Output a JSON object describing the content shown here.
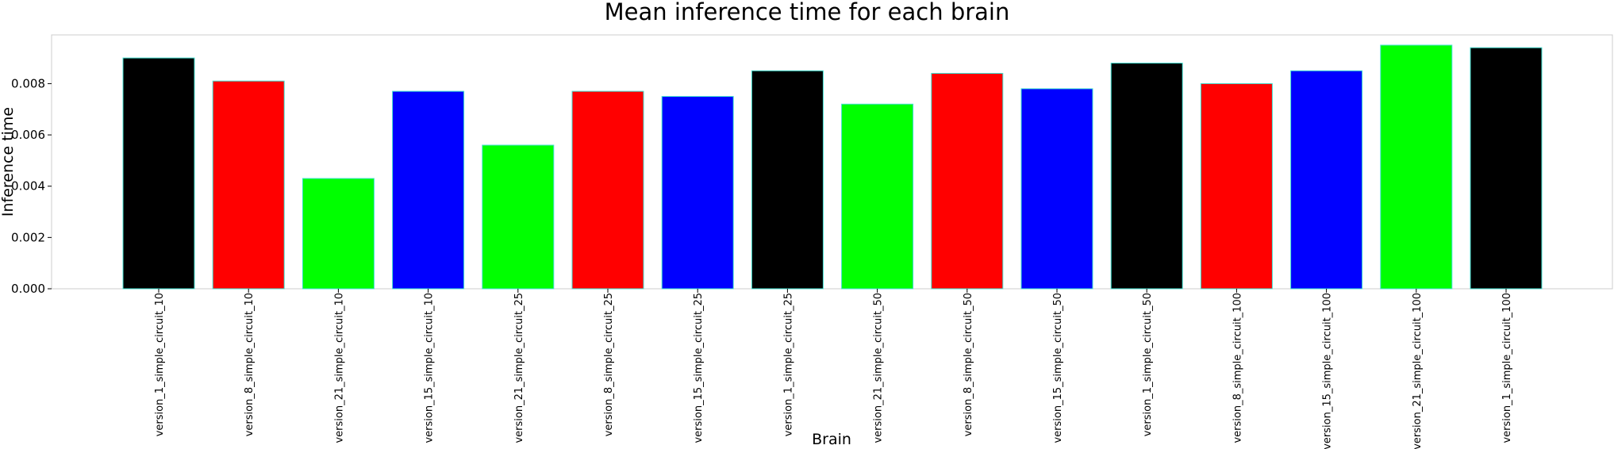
{
  "chart_data": {
    "type": "bar",
    "title": "Mean inference time for each brain",
    "xlabel": "Brain",
    "ylabel": "Inference time",
    "ylim": [
      0,
      0.0099
    ],
    "yticks": [
      0.0,
      0.002,
      0.004,
      0.006,
      0.008
    ],
    "ytick_labels": [
      "0.000",
      "0.002",
      "0.004",
      "0.006",
      "0.008"
    ],
    "grid": false,
    "categories": [
      "version_1_simple_circuit_10",
      "version_8_simple_circuit_10",
      "version_21_simple_circuit_10",
      "version_15_simple_circuit_10",
      "version_21_simple_circuit_25",
      "version_8_simple_circuit_25",
      "version_15_simple_circuit_25",
      "version_1_simple_circuit_25",
      "version_21_simple_circuit_50",
      "version_8_simple_circuit_50",
      "version_15_simple_circuit_50",
      "version_1_simple_circuit_50",
      "version_8_simple_circuit_100",
      "version_15_simple_circuit_100",
      "version_21_simple_circuit_100",
      "version_1_simple_circuit_100"
    ],
    "values": [
      0.009,
      0.0081,
      0.0043,
      0.0077,
      0.0056,
      0.0077,
      0.0075,
      0.0085,
      0.0072,
      0.0084,
      0.0078,
      0.0088,
      0.008,
      0.0085,
      0.0095,
      0.0094
    ],
    "bar_colors": [
      "#000000",
      "#ff0000",
      "#00ff00",
      "#0000ff",
      "#00ff00",
      "#ff0000",
      "#0000ff",
      "#000000",
      "#00ff00",
      "#ff0000",
      "#0000ff",
      "#000000",
      "#ff0000",
      "#0000ff",
      "#00ff00",
      "#000000"
    ],
    "edge_color": "#40e0d0"
  }
}
